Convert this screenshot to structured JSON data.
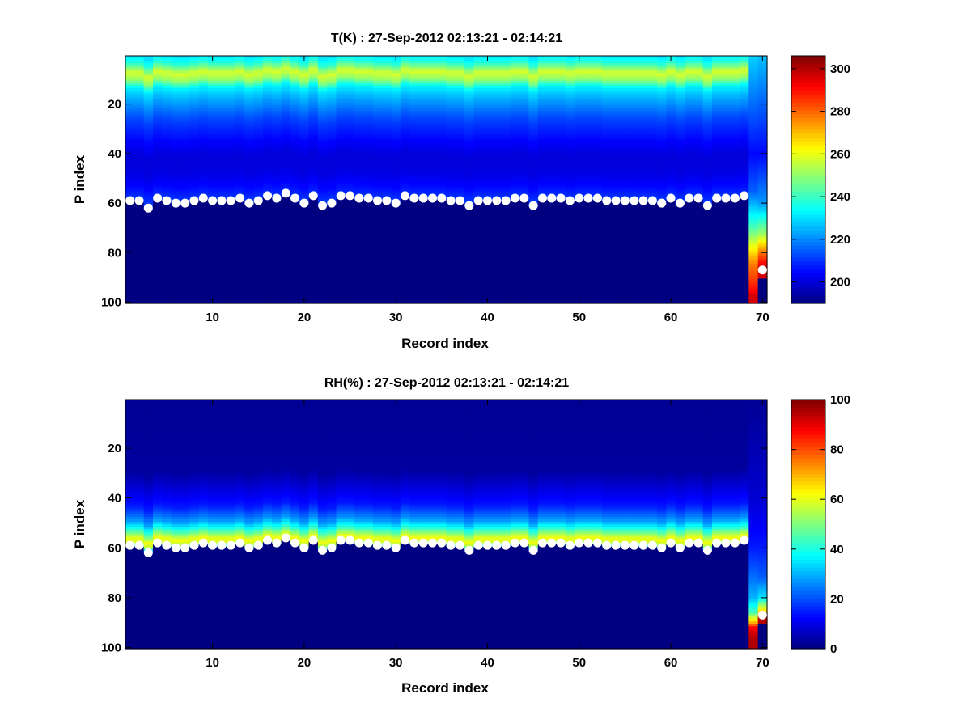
{
  "chart_data": [
    {
      "type": "heatmap",
      "title": "T(K) : 27-Sep-2012 02:13:21 - 02:14:21",
      "xlabel": "Record index",
      "ylabel": "P index",
      "xlim": [
        1,
        70
      ],
      "ylim": [
        1,
        100
      ],
      "y_reversed": true,
      "x_ticks": [
        10,
        20,
        30,
        40,
        50,
        60,
        70
      ],
      "y_ticks": [
        20,
        40,
        60,
        80,
        100
      ],
      "colormap": "jet",
      "clim": [
        190,
        306
      ],
      "colorbar_ticks": [
        200,
        220,
        240,
        260,
        280,
        300
      ],
      "fill_value": 190,
      "field_profile": [
        [
          1,
          230
        ],
        [
          4,
          238
        ],
        [
          8,
          258
        ],
        [
          11,
          250
        ],
        [
          14,
          232
        ],
        [
          20,
          222
        ],
        [
          27,
          212
        ],
        [
          35,
          205
        ],
        [
          42,
          200
        ],
        [
          48,
          201
        ],
        [
          54,
          205
        ],
        [
          60,
          212
        ]
      ],
      "record_69_profile": [
        [
          1,
          228
        ],
        [
          40,
          205
        ],
        [
          55,
          215
        ],
        [
          62,
          228
        ],
        [
          70,
          242
        ],
        [
          78,
          262
        ],
        [
          85,
          278
        ],
        [
          92,
          286
        ],
        [
          96,
          292
        ]
      ],
      "record_69_bottom_value": 296,
      "record_70_profile": [
        [
          1,
          226
        ],
        [
          40,
          205
        ],
        [
          60,
          222
        ],
        [
          72,
          250
        ],
        [
          80,
          278
        ],
        [
          86,
          296
        ]
      ],
      "record_70_bottom_value": 190,
      "surface_markers": {
        "x": [
          1,
          2,
          3,
          4,
          5,
          6,
          7,
          8,
          9,
          10,
          11,
          12,
          13,
          14,
          15,
          16,
          17,
          18,
          19,
          20,
          21,
          22,
          23,
          24,
          25,
          26,
          27,
          28,
          29,
          30,
          31,
          32,
          33,
          34,
          35,
          36,
          37,
          38,
          39,
          40,
          41,
          42,
          43,
          44,
          45,
          46,
          47,
          48,
          49,
          50,
          51,
          52,
          53,
          54,
          55,
          56,
          57,
          58,
          59,
          60,
          61,
          62,
          63,
          64,
          65,
          66,
          67,
          68,
          70
        ],
        "y": [
          59,
          59,
          62,
          58,
          59,
          60,
          60,
          59,
          58,
          59,
          59,
          59,
          58,
          60,
          59,
          57,
          58,
          56,
          58,
          60,
          57,
          61,
          60,
          57,
          57,
          58,
          58,
          59,
          59,
          60,
          57,
          58,
          58,
          58,
          58,
          59,
          59,
          61,
          59,
          59,
          59,
          59,
          58,
          58,
          61,
          58,
          58,
          58,
          59,
          58,
          58,
          58,
          59,
          59,
          59,
          59,
          59,
          59,
          60,
          58,
          60,
          58,
          58,
          61,
          58,
          58,
          58,
          57,
          87
        ]
      }
    },
    {
      "type": "heatmap",
      "title": "RH(%) : 27-Sep-2012 02:13:21 - 02:14:21",
      "xlabel": "Record index",
      "ylabel": "P index",
      "xlim": [
        1,
        70
      ],
      "ylim": [
        1,
        100
      ],
      "y_reversed": true,
      "x_ticks": [
        10,
        20,
        30,
        40,
        50,
        60,
        70
      ],
      "y_ticks": [
        20,
        40,
        60,
        80,
        100
      ],
      "colormap": "jet",
      "clim": [
        0,
        100
      ],
      "colorbar_ticks": [
        0,
        20,
        40,
        60,
        80,
        100
      ],
      "fill_value": 0,
      "field_profile": [
        [
          1,
          2
        ],
        [
          30,
          3
        ],
        [
          36,
          8
        ],
        [
          44,
          15
        ],
        [
          50,
          28
        ],
        [
          54,
          45
        ],
        [
          57,
          62
        ],
        [
          59,
          55
        ],
        [
          61,
          2
        ]
      ],
      "record_69_profile": [
        [
          1,
          2
        ],
        [
          40,
          8
        ],
        [
          60,
          15
        ],
        [
          70,
          22
        ],
        [
          80,
          30
        ],
        [
          86,
          45
        ],
        [
          90,
          70
        ],
        [
          92,
          88
        ],
        [
          96,
          95
        ]
      ],
      "record_69_bottom_value": 95,
      "record_70_profile": [
        [
          1,
          2
        ],
        [
          40,
          8
        ],
        [
          60,
          15
        ],
        [
          72,
          22
        ],
        [
          80,
          35
        ],
        [
          86,
          70
        ],
        [
          88,
          95
        ]
      ],
      "record_70_bottom_value": 0,
      "surface_markers": {
        "x": [
          1,
          2,
          3,
          4,
          5,
          6,
          7,
          8,
          9,
          10,
          11,
          12,
          13,
          14,
          15,
          16,
          17,
          18,
          19,
          20,
          21,
          22,
          23,
          24,
          25,
          26,
          27,
          28,
          29,
          30,
          31,
          32,
          33,
          34,
          35,
          36,
          37,
          38,
          39,
          40,
          41,
          42,
          43,
          44,
          45,
          46,
          47,
          48,
          49,
          50,
          51,
          52,
          53,
          54,
          55,
          56,
          57,
          58,
          59,
          60,
          61,
          62,
          63,
          64,
          65,
          66,
          67,
          68,
          70
        ],
        "y": [
          59,
          59,
          62,
          58,
          59,
          60,
          60,
          59,
          58,
          59,
          59,
          59,
          58,
          60,
          59,
          57,
          58,
          56,
          58,
          60,
          57,
          61,
          60,
          57,
          57,
          58,
          58,
          59,
          59,
          60,
          57,
          58,
          58,
          58,
          58,
          59,
          59,
          61,
          59,
          59,
          59,
          59,
          58,
          58,
          61,
          58,
          58,
          58,
          59,
          58,
          58,
          58,
          59,
          59,
          59,
          59,
          59,
          59,
          60,
          58,
          60,
          58,
          58,
          61,
          58,
          58,
          58,
          57,
          87
        ]
      }
    }
  ]
}
